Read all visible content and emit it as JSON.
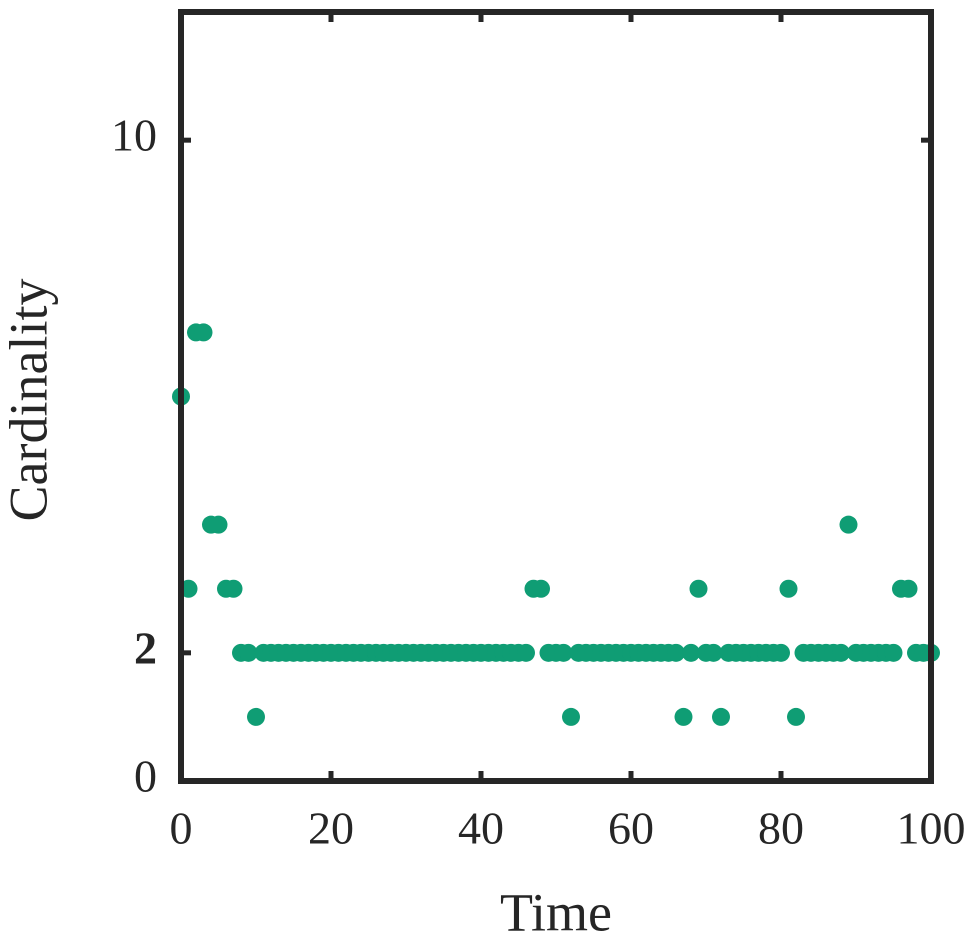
{
  "chart_data": {
    "type": "scatter",
    "xlabel": "Time",
    "ylabel": "Cardinality",
    "x": [
      0,
      1,
      2,
      3,
      4,
      5,
      6,
      7,
      8,
      9,
      10,
      11,
      12,
      13,
      14,
      15,
      16,
      17,
      18,
      19,
      20,
      21,
      22,
      23,
      24,
      25,
      26,
      27,
      28,
      29,
      30,
      31,
      32,
      33,
      34,
      35,
      36,
      37,
      38,
      39,
      40,
      41,
      42,
      43,
      44,
      45,
      46,
      47,
      48,
      49,
      50,
      51,
      52,
      53,
      54,
      55,
      56,
      57,
      58,
      59,
      60,
      61,
      62,
      63,
      64,
      65,
      66,
      67,
      68,
      69,
      70,
      71,
      72,
      73,
      74,
      75,
      76,
      77,
      78,
      79,
      80,
      81,
      82,
      83,
      84,
      85,
      86,
      87,
      88,
      89,
      90,
      91,
      92,
      93,
      94,
      95,
      96,
      97,
      98,
      99,
      100
    ],
    "values": [
      6,
      3,
      7,
      7,
      4,
      4,
      3,
      3,
      2,
      2,
      1,
      2,
      2,
      2,
      2,
      2,
      2,
      2,
      2,
      2,
      2,
      2,
      2,
      2,
      2,
      2,
      2,
      2,
      2,
      2,
      2,
      2,
      2,
      2,
      2,
      2,
      2,
      2,
      2,
      2,
      2,
      2,
      2,
      2,
      2,
      2,
      2,
      3,
      3,
      2,
      2,
      2,
      1,
      2,
      2,
      2,
      2,
      2,
      2,
      2,
      2,
      2,
      2,
      2,
      2,
      2,
      2,
      1,
      2,
      3,
      2,
      2,
      1,
      2,
      2,
      2,
      2,
      2,
      2,
      2,
      2,
      3,
      1,
      2,
      2,
      2,
      2,
      2,
      2,
      4,
      2,
      2,
      2,
      2,
      2,
      2,
      3,
      3,
      2,
      2,
      2
    ],
    "color": "#0f9d74",
    "xlim": [
      0,
      100
    ],
    "xticks": [
      0,
      20,
      40,
      60,
      80,
      100
    ],
    "ylim": [
      0,
      12
    ],
    "yticks": [
      0,
      2,
      10
    ]
  }
}
